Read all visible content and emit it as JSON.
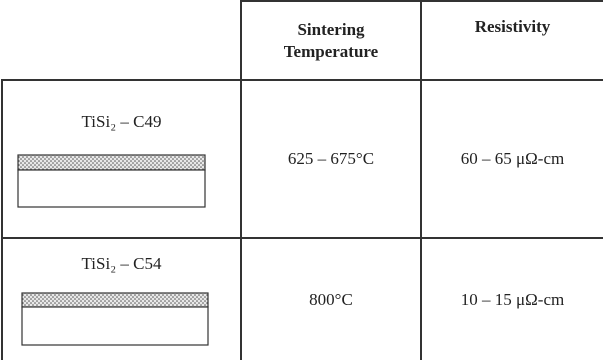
{
  "table": {
    "header": [
      "Sintering Temperature",
      "Resistivity"
    ],
    "rows": [
      {
        "label": "TiSi₂ – C49",
        "temperature": "625 – 675°C",
        "resistivity": "60 – 65 μΩ-cm"
      },
      {
        "label": "TiSi₂ – C54",
        "temperature": "800°C",
        "resistivity": "10 – 15 μΩ-cm"
      }
    ]
  }
}
